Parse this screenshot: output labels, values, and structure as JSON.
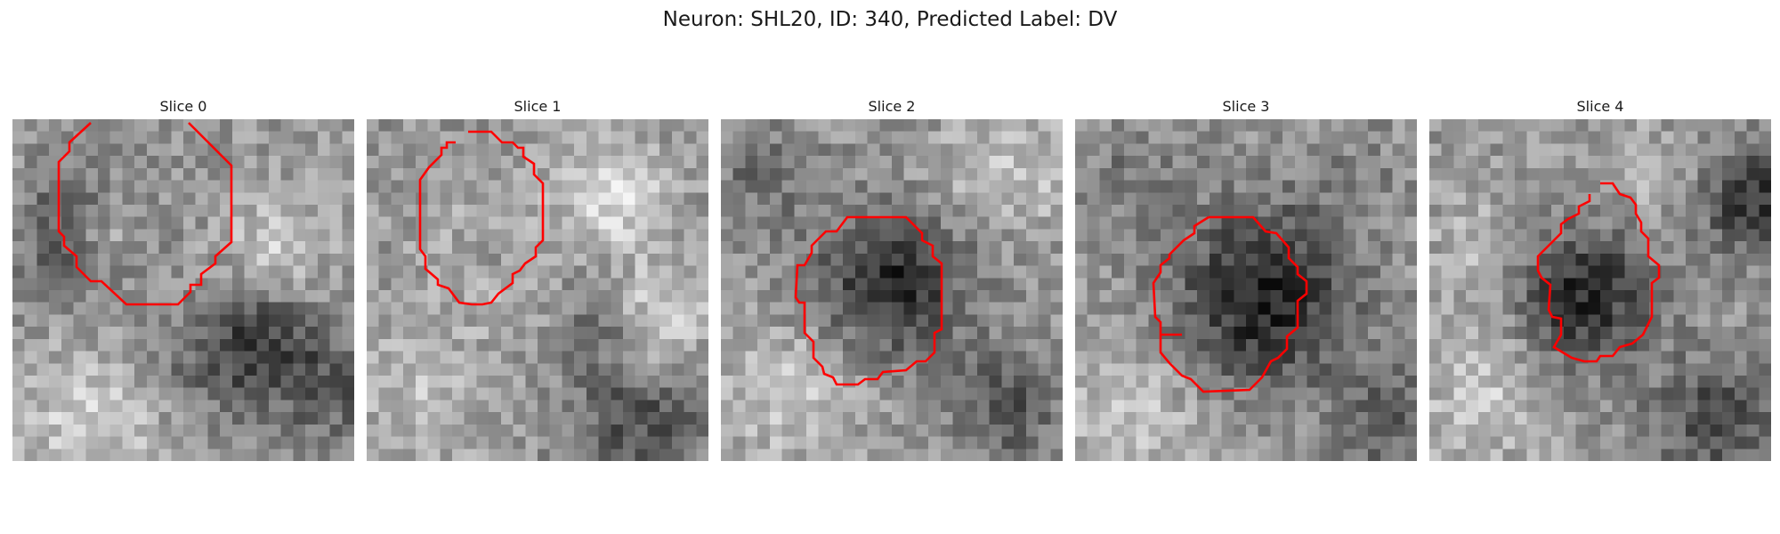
{
  "figure": {
    "title": "Neuron: SHL20, ID: 340, Predicted Label: DV"
  },
  "contour_color": "#ff0000",
  "slices": [
    {
      "title": "Slice 0"
    },
    {
      "title": "Slice 1"
    },
    {
      "title": "Slice 2"
    },
    {
      "title": "Slice 3"
    },
    {
      "title": "Slice 4"
    }
  ]
}
